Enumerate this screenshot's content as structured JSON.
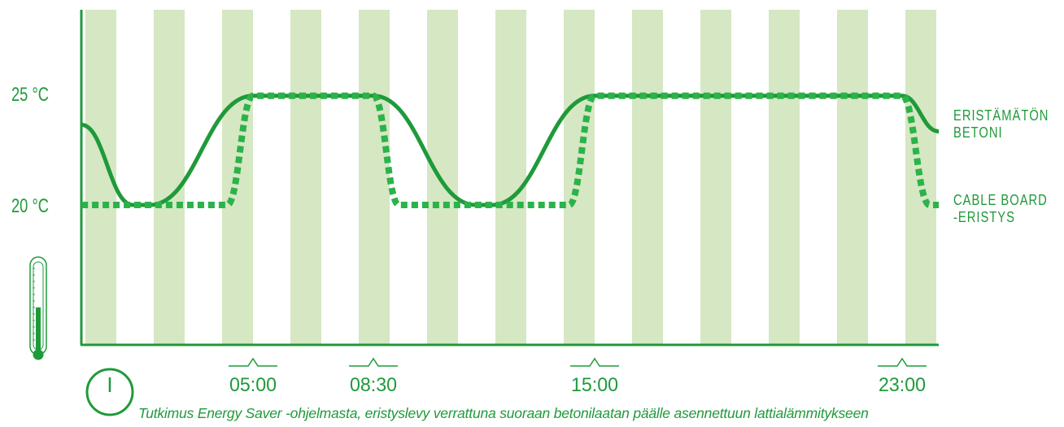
{
  "colors": {
    "accent": "#1f9a3a",
    "dotted": "#2bb34a",
    "band": "#d6e7c3",
    "axis": "#1f9a3a"
  },
  "caption": "Tutkimus Energy Saver -ohjelmasta, eristyslevy verrattuna suoraan betonilaatan päälle asennettuun lattialämmitykseen",
  "chart_data": {
    "type": "line",
    "y_tick_labels": [
      {
        "value": 25,
        "label": "25 °C"
      },
      {
        "value": 20,
        "label": "20 °C"
      }
    ],
    "x_tick_labels": [
      {
        "time": "05:00",
        "label": "05:00"
      },
      {
        "time": "08:30",
        "label": "08:30"
      },
      {
        "time": "15:00",
        "label": "15:00"
      },
      {
        "time": "23:00",
        "label": "23:00"
      }
    ],
    "series": [
      {
        "name": "ERISTÄMÄTÖN BETONI",
        "label_lines": [
          "ERISTÄMÄTÖN",
          "BETONI"
        ],
        "style": "solid",
        "points": [
          [
            "00:00",
            23.6
          ],
          [
            "01:30",
            20.0
          ],
          [
            "02:00",
            20.0
          ],
          [
            "05:00",
            24.9
          ],
          [
            "08:30",
            24.9
          ],
          [
            "11:30",
            20.0
          ],
          [
            "12:00",
            20.0
          ],
          [
            "15:00",
            24.9
          ],
          [
            "23:00",
            24.9
          ],
          [
            "24:00",
            23.3
          ]
        ]
      },
      {
        "name": "CABLE BOARD -ERISTYS",
        "label_lines": [
          "CABLE  BOARD",
          "-ERISTYS"
        ],
        "style": "dotted",
        "points": [
          [
            "00:00",
            20.0
          ],
          [
            "04:15",
            20.0
          ],
          [
            "05:00",
            24.9
          ],
          [
            "08:30",
            24.9
          ],
          [
            "09:15",
            20.0
          ],
          [
            "14:15",
            20.0
          ],
          [
            "15:00",
            24.9
          ],
          [
            "23:00",
            24.9
          ],
          [
            "23:45",
            20.0
          ],
          [
            "24:00",
            20.0
          ]
        ]
      }
    ],
    "background": "vertical-stripes"
  }
}
